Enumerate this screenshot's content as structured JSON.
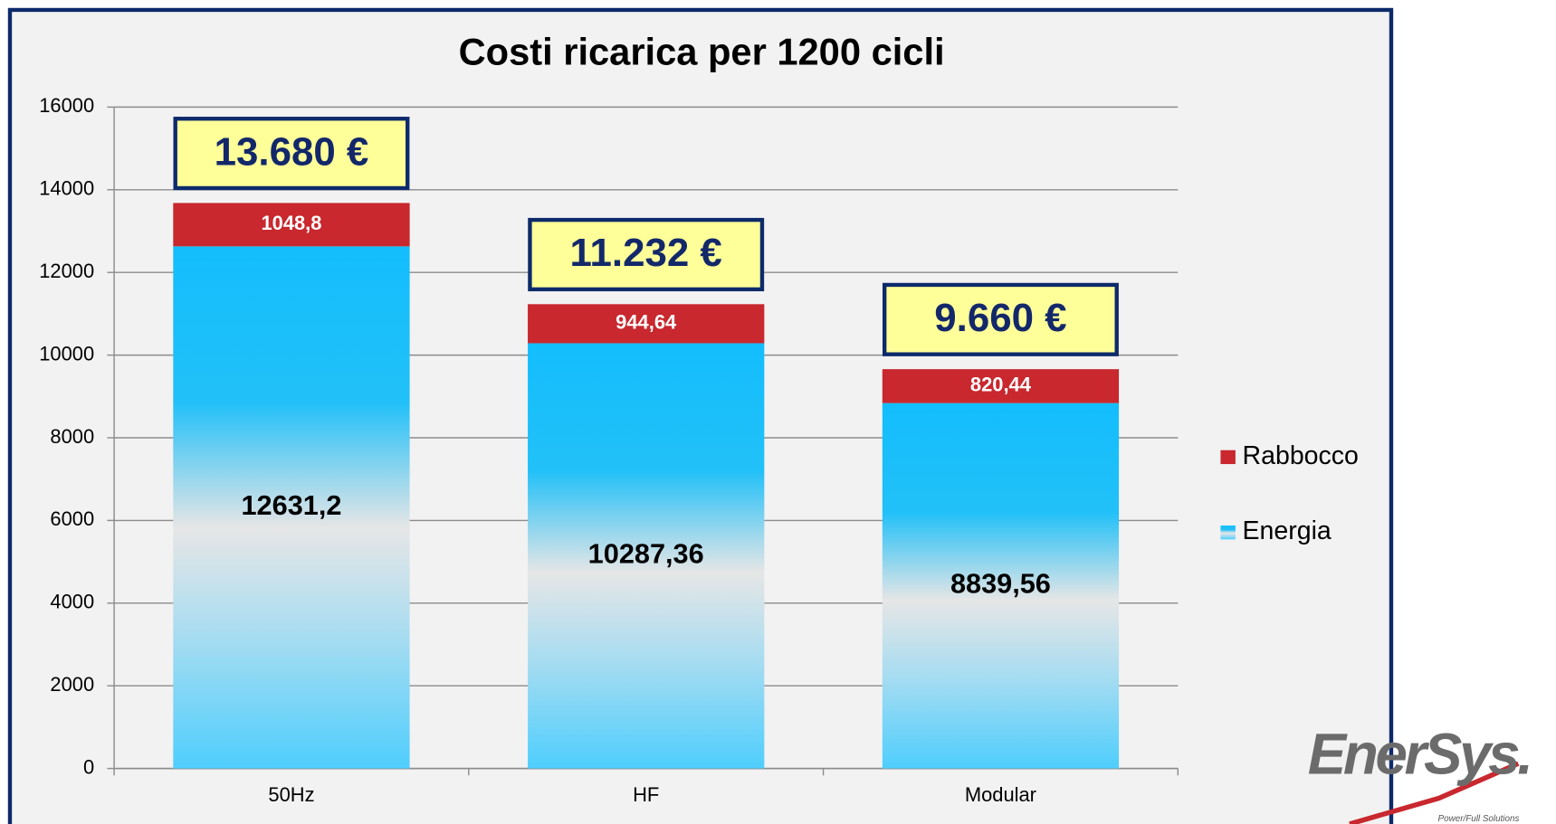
{
  "chart_data": {
    "type": "stacked-bar",
    "title": "Costi ricarica per 1200 cicli",
    "categories": [
      "50Hz",
      "HF",
      "Modular"
    ],
    "series": [
      {
        "name": "Energia",
        "color": "#16bffc",
        "values": [
          12631.2,
          10287.36,
          8839.56
        ],
        "value_labels": [
          "12631,2",
          "10287,36",
          "8839,56"
        ]
      },
      {
        "name": "Rabbocco",
        "color": "#c8282e",
        "values": [
          1048.8,
          944.64,
          820.44
        ],
        "value_labels": [
          "1048,8",
          "944,64",
          "820,44"
        ]
      }
    ],
    "annotations": [
      "13.680 €",
      "11.232 €",
      "9.660 €"
    ],
    "ylim": [
      0,
      16000
    ],
    "yticks": [
      0,
      2000,
      4000,
      6000,
      8000,
      10000,
      12000,
      14000,
      16000
    ],
    "grid": true,
    "legend": "right"
  },
  "logo": {
    "name": "EnerSys.",
    "tagline": "Power/Full Solutions"
  }
}
